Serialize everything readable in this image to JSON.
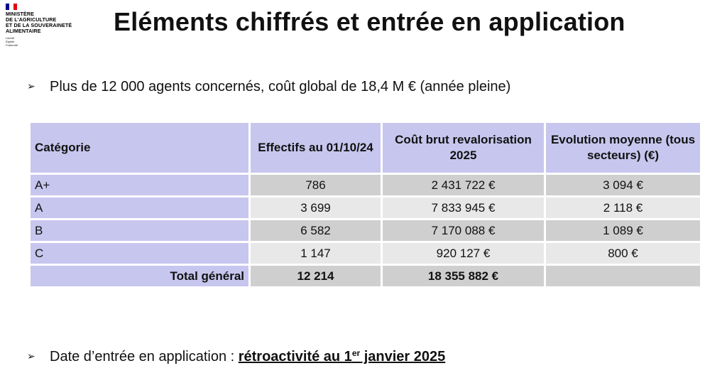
{
  "logo": {
    "org": "MINISTÈRE\nDE L'AGRICULTURE\nET DE LA SOUVERAINETÉ\nALIMENTAIRE",
    "motto": "Liberté\nÉgalité\nFraternité"
  },
  "title": "Eléments chiffrés et entrée en application",
  "bullet1": "Plus de 12 000 agents concernés, coût global de 18,4 M € (année pleine)",
  "table": {
    "headers": [
      "Catégorie",
      "Effectifs au 01/10/24",
      "Coût brut revalorisation 2025",
      "Evolution moyenne (tous secteurs) (€)"
    ],
    "rows": [
      [
        "A+",
        "786",
        "2 431 722 €",
        "3 094 €"
      ],
      [
        "A",
        "3 699",
        "7 833 945 €",
        "2 118 €"
      ],
      [
        "B",
        "6 582",
        "7 170 088 €",
        "1 089 €"
      ],
      [
        "C",
        "1 147",
        "920 127 €",
        "800 €"
      ]
    ],
    "total": [
      "Total général",
      "12 214",
      "18 355 882 €",
      ""
    ]
  },
  "bullet2": {
    "prefix": "Date d’entrée en application : ",
    "emph_before": "rétroactivité au 1",
    "emph_sup": "er",
    "emph_after": " janvier 2025"
  }
}
